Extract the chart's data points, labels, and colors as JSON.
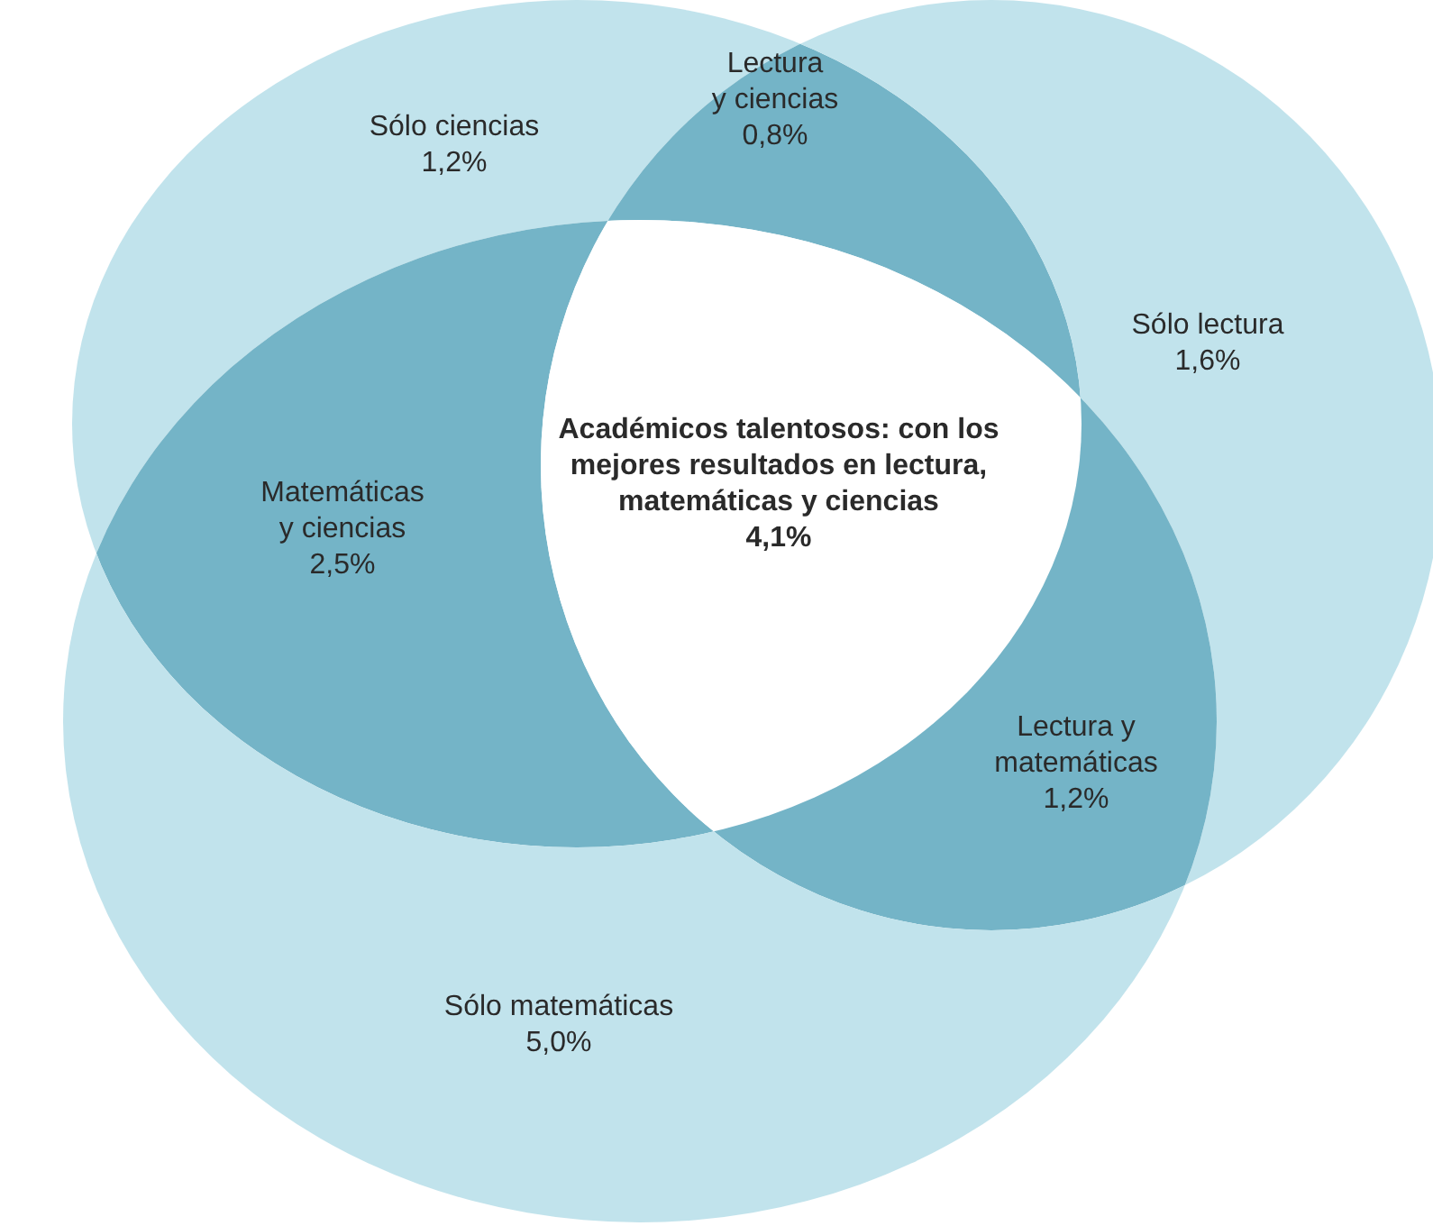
{
  "chart_data": {
    "type": "other",
    "categories": [
      "Sólo ciencias",
      "Lectura\ny ciencias",
      "Sólo lectura",
      "Matemáticas\ny ciencias",
      "Académicos talentosos: con los\nmejores resultados en lectura,\nmatemáticas y ciencias",
      "Lectura y\nmatemáticas",
      "Sólo matemáticas"
    ],
    "values": [
      1.2,
      0.8,
      1.6,
      2.5,
      4.1,
      1.2,
      5.0
    ],
    "value_labels": [
      "1,2%",
      "0,8%",
      "1,6%",
      "2,5%",
      "4,1%",
      "1,2%",
      "5,0%"
    ],
    "colors": [
      "#c1e3ec",
      "#74b4c7",
      "#c1e3ec",
      "#74b4c7",
      "#ffffff",
      "#74b4c7",
      "#c1e3ec"
    ]
  }
}
